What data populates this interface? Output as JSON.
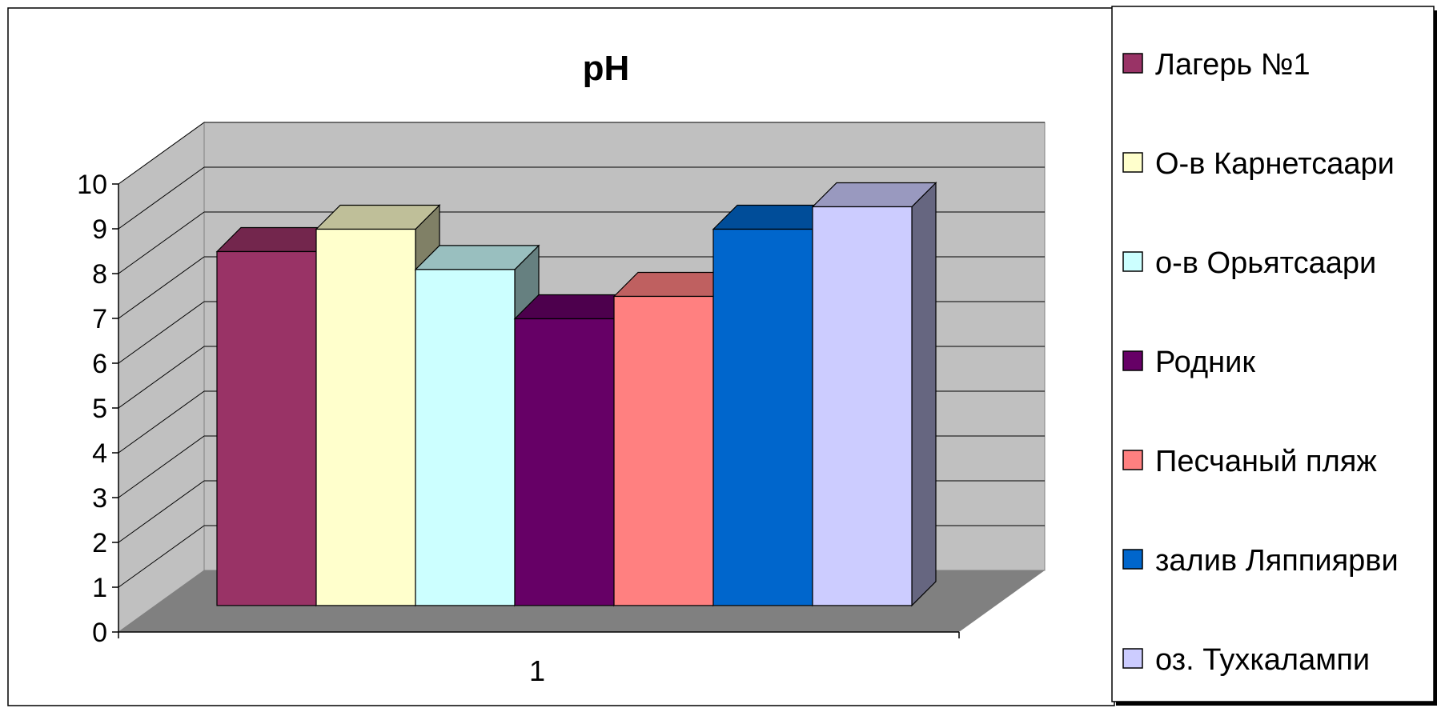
{
  "chart_data": {
    "type": "bar",
    "title": "pH",
    "categories": [
      "1"
    ],
    "xlabel": "",
    "ylabel": "",
    "ylim": [
      0,
      10
    ],
    "yticks": [
      0,
      1,
      2,
      3,
      4,
      5,
      6,
      7,
      8,
      9,
      10
    ],
    "grid": true,
    "three_d": true,
    "legend_position": "right",
    "series": [
      {
        "name": "Лагерь №1",
        "values": [
          7.9
        ],
        "color": "#993366"
      },
      {
        "name": "О-в Карнетсаари",
        "values": [
          8.4
        ],
        "color": "#FFFFCC"
      },
      {
        "name": "о-в Орьятсаари",
        "values": [
          7.5
        ],
        "color": "#CCFFFF"
      },
      {
        "name": "Родник",
        "values": [
          6.4
        ],
        "color": "#660066"
      },
      {
        "name": "Песчаный пляж",
        "values": [
          6.9
        ],
        "color": "#FF8080"
      },
      {
        "name": "залив Ляппиярви",
        "values": [
          8.4
        ],
        "color": "#0066CC"
      },
      {
        "name": "оз. Тухкалампи",
        "values": [
          8.9
        ],
        "color": "#CCCCFF"
      }
    ],
    "colors": {
      "plot_wall": "#C0C0C0",
      "floor": "#808080",
      "gridline": "#000000"
    }
  }
}
